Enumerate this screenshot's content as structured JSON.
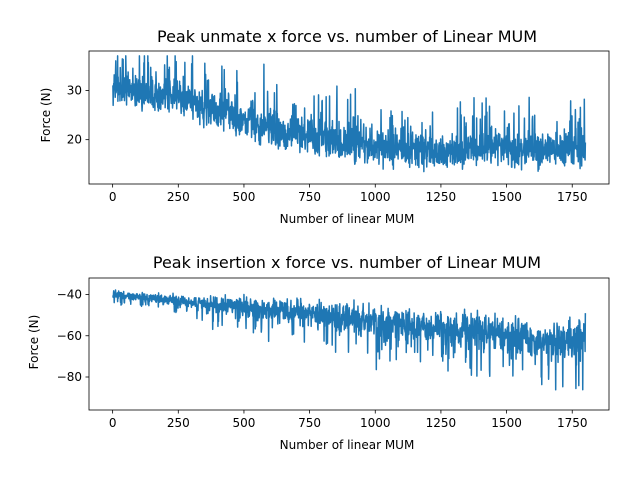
{
  "chart_data": [
    {
      "type": "line",
      "title": "Peak unmate x force vs. number of Linear MUM",
      "xlabel": "Number of linear MUM",
      "ylabel": "Force (N)",
      "xlim": [
        -90,
        1890
      ],
      "ylim": [
        11,
        38
      ],
      "xticks": [
        0,
        250,
        500,
        750,
        1000,
        1250,
        1500,
        1750
      ],
      "yticks": [
        20,
        30
      ],
      "grid": false,
      "color": "#1f77b4",
      "n_points": 1800,
      "series": [
        {
          "x_start": 1,
          "x_end": 1800,
          "trend": [
            {
              "x": 0,
              "mean": 30.5,
              "spread": 2.8
            },
            {
              "x": 250,
              "mean": 28.5,
              "spread": 3.0
            },
            {
              "x": 500,
              "mean": 23.5,
              "spread": 3.5
            },
            {
              "x": 750,
              "mean": 20.5,
              "spread": 3.5
            },
            {
              "x": 1000,
              "mean": 18.5,
              "spread": 3.2
            },
            {
              "x": 1250,
              "mean": 17.5,
              "spread": 3.2
            },
            {
              "x": 1500,
              "mean": 18.0,
              "spread": 3.2
            },
            {
              "x": 1800,
              "mean": 18.0,
              "spread": 3.0
            }
          ],
          "min": 12,
          "max": 37
        }
      ]
    },
    {
      "type": "line",
      "title": "Peak insertion x force vs. number of Linear MUM",
      "xlabel": "Number of linear MUM",
      "ylabel": "Force (N)",
      "xlim": [
        -90,
        1890
      ],
      "ylim": [
        -96,
        -32
      ],
      "xticks": [
        0,
        250,
        500,
        750,
        1000,
        1250,
        1500,
        1750
      ],
      "yticks": [
        -80,
        -60,
        -40
      ],
      "grid": false,
      "color": "#1f77b4",
      "n_points": 1800,
      "series": [
        {
          "x_start": 1,
          "x_end": 1800,
          "trend": [
            {
              "x": 0,
              "mean": -40.0,
              "spread": 1.5
            },
            {
              "x": 250,
              "mean": -43.0,
              "spread": 2.5
            },
            {
              "x": 500,
              "mean": -46.0,
              "spread": 4.5
            },
            {
              "x": 750,
              "mean": -49.0,
              "spread": 5.5
            },
            {
              "x": 1000,
              "mean": -53.0,
              "spread": 6.5
            },
            {
              "x": 1250,
              "mean": -56.0,
              "spread": 7.0
            },
            {
              "x": 1500,
              "mean": -59.0,
              "spread": 7.5
            },
            {
              "x": 1700,
              "mean": -63.0,
              "spread": 8.5
            },
            {
              "x": 1800,
              "mean": -60.0,
              "spread": 8.0
            }
          ],
          "min": -94,
          "max": -35
        }
      ]
    }
  ]
}
